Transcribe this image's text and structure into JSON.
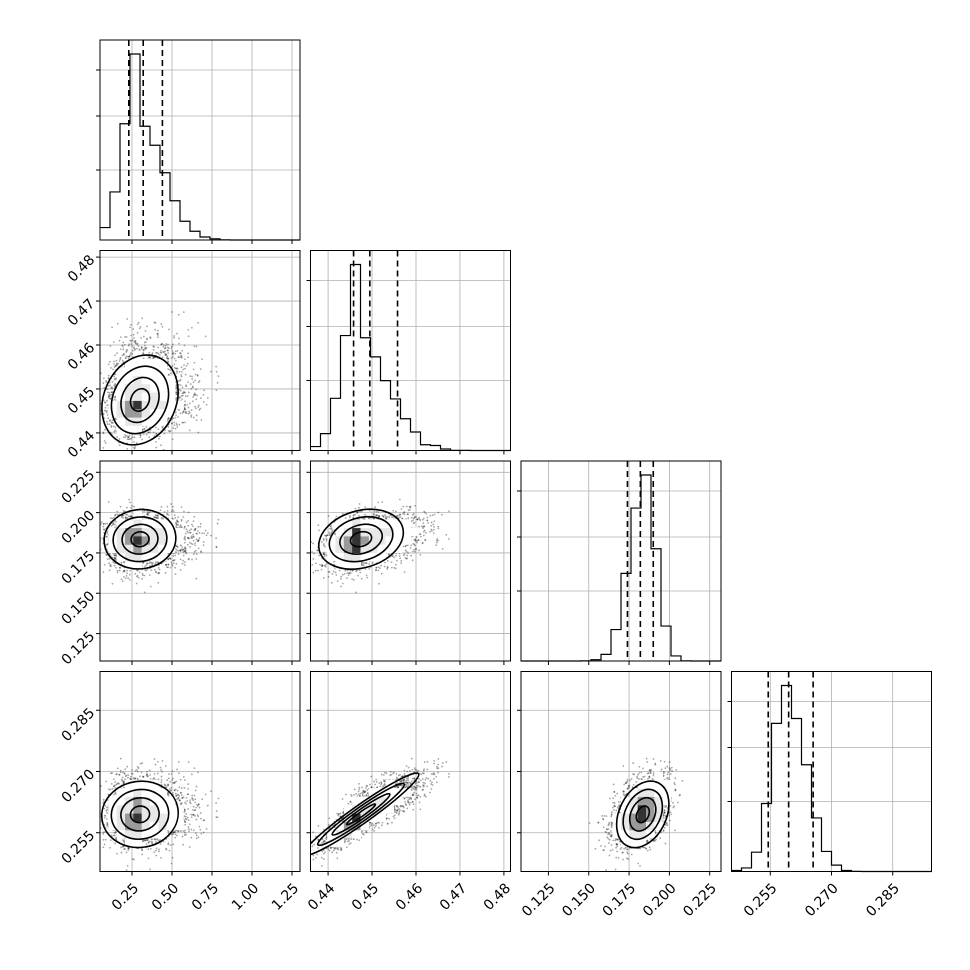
{
  "chart_data": {
    "type": "corner",
    "n_params": 4,
    "params": [
      {
        "range": [
          0.05,
          1.3
        ],
        "ticks": [
          0.25,
          0.5,
          0.75,
          1.0,
          1.25
        ],
        "tick_labels": [
          "0.25",
          "0.50",
          "0.75",
          "1.00",
          "1.25"
        ],
        "peak": 0.3,
        "sigma_lo": 0.09,
        "sigma_hi": 0.15,
        "quantiles": [
          0.23,
          0.32,
          0.44
        ]
      },
      {
        "range": [
          0.436,
          0.4815
        ],
        "ticks": [
          0.44,
          0.45,
          0.46,
          0.47,
          0.48
        ],
        "tick_labels": [
          "0.44",
          "0.45",
          "0.46",
          "0.47",
          "0.48"
        ],
        "peak": 0.4475,
        "sigma_lo": 0.0035,
        "sigma_hi": 0.0065,
        "quantiles": [
          0.4458,
          0.4495,
          0.4558
        ]
      },
      {
        "range": [
          0.108,
          0.232
        ],
        "ticks": [
          0.125,
          0.15,
          0.175,
          0.2,
          0.225
        ],
        "tick_labels": [
          "0.125",
          "0.150",
          "0.175",
          "0.200",
          "0.225"
        ],
        "peak": 0.1835,
        "sigma_lo": 0.0085,
        "sigma_hi": 0.0075,
        "quantiles": [
          0.174,
          0.182,
          0.19
        ]
      },
      {
        "range": [
          0.2455,
          0.2945
        ],
        "ticks": [
          0.255,
          0.27,
          0.285
        ],
        "tick_labels": [
          "0.255",
          "0.270",
          "0.285"
        ],
        "peak": 0.2595,
        "sigma_lo": 0.0035,
        "sigma_hi": 0.0045,
        "quantiles": [
          0.2545,
          0.2595,
          0.2655
        ]
      }
    ],
    "correlations": {
      "1-0": 0.15,
      "2-0": 0.1,
      "3-0": 0.05,
      "2-1": 0.35,
      "3-1": 0.85,
      "3-2": 0.3
    },
    "histogram_bins": 20,
    "quantile_levels": [
      0.16,
      0.5,
      0.84
    ],
    "grid": true,
    "axis_labels": [
      "",
      "",
      "",
      ""
    ]
  }
}
